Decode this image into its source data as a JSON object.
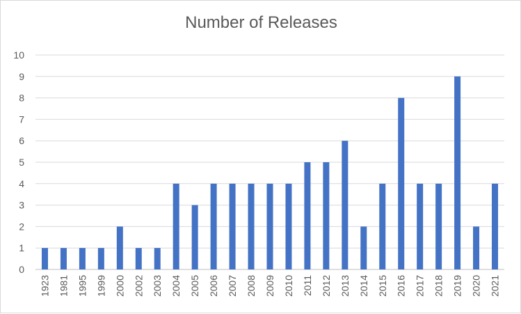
{
  "chart_data": {
    "type": "bar",
    "title": "Number of Releases",
    "xlabel": "",
    "ylabel": "",
    "ylim": [
      0,
      10
    ],
    "yticks": [
      0,
      1,
      2,
      3,
      4,
      5,
      6,
      7,
      8,
      9,
      10
    ],
    "grid": true,
    "legend": "none",
    "color": "#4472c4",
    "categories": [
      "1923",
      "1981",
      "1995",
      "1999",
      "2000",
      "2002",
      "2003",
      "2004",
      "2005",
      "2006",
      "2007",
      "2008",
      "2009",
      "2010",
      "2011",
      "2012",
      "2013",
      "2014",
      "2015",
      "2016",
      "2017",
      "2018",
      "2019",
      "2020",
      "2021"
    ],
    "values": [
      1,
      1,
      1,
      1,
      2,
      1,
      1,
      4,
      3,
      4,
      4,
      4,
      4,
      4,
      5,
      5,
      6,
      2,
      4,
      8,
      4,
      4,
      9,
      2,
      4
    ]
  }
}
